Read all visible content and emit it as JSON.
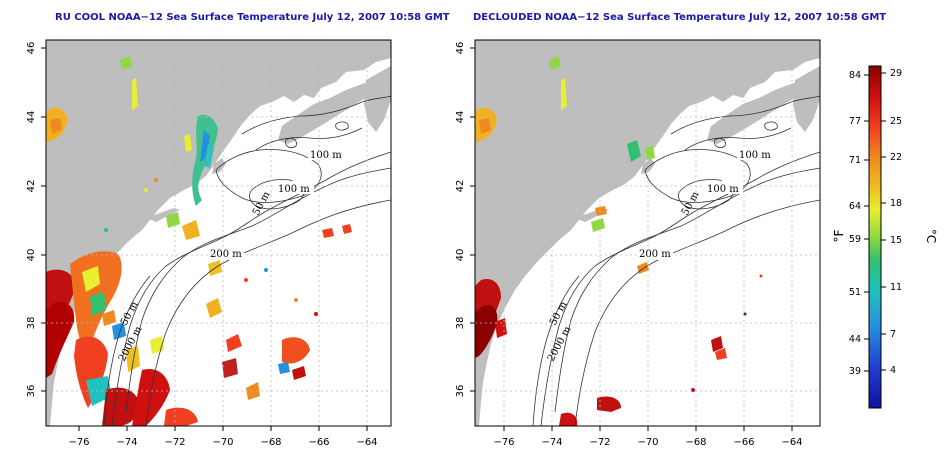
{
  "panels": [
    {
      "title": "RU COOL NOAA−12 Sea Surface Temperature July 12, 2007 10:58 GMT",
      "contour_labels": [
        "100 m",
        "100 m",
        "50 m",
        "200 m",
        "50 m",
        "2000 m"
      ]
    },
    {
      "title": "DECLOUDED NOAA−12 Sea Surface Temperature July 12, 2007 10:58 GMT",
      "contour_labels": [
        "100 m",
        "100 m",
        "50 m",
        "200 m",
        "50 m",
        "2000 m"
      ]
    }
  ],
  "axes": {
    "x_ticks": [
      "−76",
      "−74",
      "−72",
      "−70",
      "−68",
      "−66",
      "−64"
    ],
    "y_ticks": [
      "36",
      "38",
      "40",
      "42",
      "44",
      "46"
    ]
  },
  "colorbar": {
    "fahrenheit_label": "°F",
    "celsius_label": "°C",
    "fahrenheit_ticks": [
      "84",
      "77",
      "71",
      "64",
      "59",
      "51",
      "44",
      "39"
    ],
    "celsius_ticks": [
      "29",
      "25",
      "22",
      "18",
      "15",
      "11",
      "7",
      "4"
    ],
    "colors": [
      "#8b0000",
      "#d01010",
      "#f04020",
      "#f08a20",
      "#f0c020",
      "#e8ef30",
      "#90d840",
      "#30c070",
      "#20c0c0",
      "#2890e0",
      "#2040d0",
      "#1010a0"
    ]
  },
  "colors": {
    "land": "#bebebe",
    "title": "#1a1aa6",
    "grid": "#bbbbbb"
  }
}
